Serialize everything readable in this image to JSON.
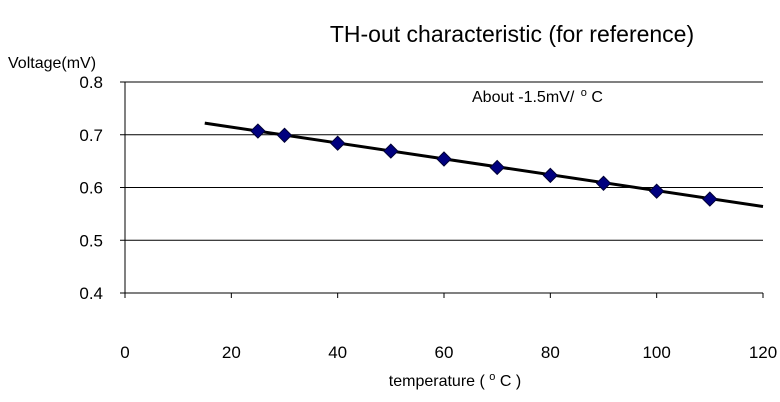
{
  "chart_data": {
    "type": "scatter",
    "title": "TH-out characteristic (for reference)",
    "xlabel_main": "temperature",
    "xlabel_unit_open": "(",
    "xlabel_unit_sup": "o",
    "xlabel_unit_main": "C",
    "xlabel_unit_close": ")",
    "ylabel": "Voltage(mV)",
    "xlim": [
      0,
      120
    ],
    "ylim": [
      0.4,
      0.8
    ],
    "x_ticks": [
      0,
      20,
      40,
      60,
      80,
      100,
      120
    ],
    "x_tick_labels": [
      "0",
      "20",
      "40",
      "60",
      "80",
      "100",
      "120"
    ],
    "y_ticks": [
      0.4,
      0.5,
      0.6,
      0.7,
      0.8
    ],
    "y_tick_labels": [
      "0.4",
      "0.5",
      "0.6",
      "0.7",
      "0.8"
    ],
    "y_gridlines": [
      0.5,
      0.6,
      0.7,
      0.8
    ],
    "grid": "horizontal",
    "annotation": {
      "text_main": "About -1.5mV/",
      "text_sup": "o",
      "text_tail": "C"
    },
    "series": [
      {
        "x": [
          25,
          30,
          40,
          50,
          60,
          70,
          80,
          90,
          100,
          110
        ],
        "y": [
          0.707,
          0.699,
          0.684,
          0.669,
          0.654,
          0.638,
          0.623,
          0.608,
          0.593,
          0.578
        ]
      }
    ],
    "trendline": {
      "x": [
        15,
        120
      ],
      "y": [
        0.722,
        0.564
      ]
    },
    "colors": {
      "marker": "#00007f",
      "line": "#000000",
      "grid": "#000000"
    }
  }
}
